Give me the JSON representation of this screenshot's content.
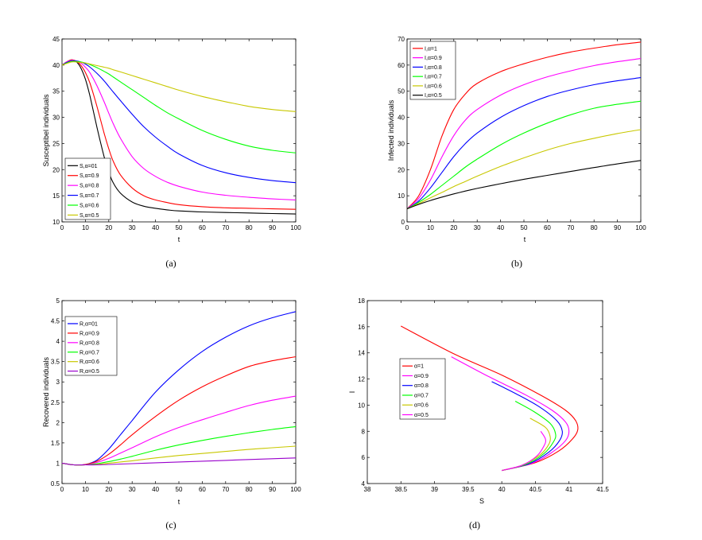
{
  "chart_data": [
    {
      "type": "line",
      "caption": "(a)",
      "xlabel": "t",
      "ylabel": "Susceptibel individuals",
      "xlim": [
        0,
        100
      ],
      "ylim": [
        10,
        45
      ],
      "xticks": [
        0,
        10,
        20,
        30,
        40,
        50,
        60,
        70,
        80,
        90,
        100
      ],
      "yticks": [
        10,
        15,
        20,
        25,
        30,
        35,
        40,
        45
      ],
      "legend_position": "bottom-left",
      "x": [
        0,
        2,
        4,
        6,
        8,
        10,
        12,
        15,
        18,
        20,
        22,
        25,
        30,
        35,
        40,
        45,
        50,
        60,
        70,
        80,
        90,
        100
      ],
      "series": [
        {
          "name": "S,α=01",
          "color": "#000000",
          "values": [
            40.0,
            40.6,
            41.0,
            40.7,
            39.5,
            37.3,
            34.0,
            28.0,
            22.5,
            19.5,
            17.4,
            15.5,
            13.8,
            13.0,
            12.6,
            12.3,
            12.1,
            11.9,
            11.8,
            11.7,
            11.6,
            11.5
          ]
        },
        {
          "name": "S,α=0.9",
          "color": "#ff0000",
          "values": [
            40.0,
            40.6,
            41.0,
            40.8,
            40.0,
            38.6,
            36.5,
            32.0,
            27.0,
            24.0,
            21.5,
            19.0,
            16.5,
            15.0,
            14.2,
            13.7,
            13.3,
            12.9,
            12.7,
            12.6,
            12.5,
            12.4
          ]
        },
        {
          "name": "S,α=0.8",
          "color": "#ff00ff",
          "values": [
            40.0,
            40.6,
            40.9,
            40.8,
            40.4,
            39.6,
            38.5,
            36.0,
            33.0,
            30.8,
            28.7,
            26.0,
            22.5,
            20.2,
            18.7,
            17.6,
            16.8,
            15.7,
            15.1,
            14.7,
            14.4,
            14.2
          ]
        },
        {
          "name": "S,α=0.7",
          "color": "#0000ff",
          "values": [
            40.0,
            40.5,
            40.8,
            40.8,
            40.6,
            40.2,
            39.6,
            38.4,
            37.0,
            35.9,
            34.8,
            33.2,
            30.6,
            28.2,
            26.2,
            24.5,
            23.0,
            20.8,
            19.4,
            18.5,
            17.9,
            17.5
          ]
        },
        {
          "name": "S,α=0.6",
          "color": "#00ff00",
          "values": [
            40.0,
            40.4,
            40.7,
            40.7,
            40.6,
            40.4,
            40.1,
            39.5,
            38.8,
            38.3,
            37.7,
            36.8,
            35.3,
            33.8,
            32.3,
            30.9,
            29.7,
            27.5,
            25.8,
            24.5,
            23.7,
            23.2
          ]
        },
        {
          "name": "S,α=0.5",
          "color": "#c8c800",
          "values": [
            40.0,
            40.3,
            40.6,
            40.6,
            40.5,
            40.4,
            40.2,
            39.9,
            39.6,
            39.4,
            39.1,
            38.7,
            38.0,
            37.3,
            36.6,
            35.9,
            35.2,
            34.0,
            33.0,
            32.1,
            31.5,
            31.1
          ]
        }
      ]
    },
    {
      "type": "line",
      "caption": "(b)",
      "xlabel": "t",
      "ylabel": "Infected individuals",
      "xlim": [
        0,
        100
      ],
      "ylim": [
        0,
        70
      ],
      "xticks": [
        0,
        10,
        20,
        30,
        40,
        50,
        60,
        70,
        80,
        90,
        100
      ],
      "yticks": [
        0,
        10,
        20,
        30,
        40,
        50,
        60,
        70
      ],
      "legend_position": "top-left",
      "x": [
        0,
        5,
        10,
        15,
        20,
        25,
        30,
        40,
        50,
        60,
        70,
        80,
        90,
        100
      ],
      "series": [
        {
          "name": "I,α=1",
          "color": "#ff0000",
          "values": [
            5,
            10,
            20,
            33,
            43,
            49,
            53,
            57.5,
            60.5,
            63,
            65,
            66.5,
            67.8,
            68.8
          ]
        },
        {
          "name": "I,α=0.9",
          "color": "#ff00ff",
          "values": [
            5,
            9,
            16,
            25,
            33,
            39,
            43,
            48.5,
            52.5,
            55.5,
            57.8,
            59.8,
            61.3,
            62.5
          ]
        },
        {
          "name": "I,α=0.8",
          "color": "#0000ff",
          "values": [
            5,
            8,
            13,
            19,
            25,
            30,
            34,
            40,
            44.5,
            48,
            50.5,
            52.5,
            54,
            55.2
          ]
        },
        {
          "name": "I,α=0.7",
          "color": "#00ff00",
          "values": [
            5,
            7.5,
            10.5,
            14,
            17.5,
            21,
            24,
            29.5,
            34,
            37.8,
            41,
            43.5,
            45,
            46.2
          ]
        },
        {
          "name": "I,α=0.6",
          "color": "#c8c800",
          "values": [
            5,
            7,
            9.2,
            11.3,
            13.5,
            15.5,
            17.5,
            21.2,
            24.5,
            27.5,
            30,
            32,
            33.8,
            35.3
          ]
        },
        {
          "name": "I,α=0.5",
          "color": "#000000",
          "values": [
            5,
            6.7,
            8.2,
            9.5,
            10.7,
            11.8,
            12.8,
            14.6,
            16.3,
            17.8,
            19.3,
            20.8,
            22.2,
            23.5
          ]
        }
      ]
    },
    {
      "type": "line",
      "caption": "(c)",
      "xlabel": "t",
      "ylabel": "Recovered individuals",
      "xlim": [
        0,
        100
      ],
      "ylim": [
        0.5,
        5
      ],
      "xticks": [
        0,
        10,
        20,
        30,
        40,
        50,
        60,
        70,
        80,
        90,
        100
      ],
      "yticks": [
        0.5,
        1,
        1.5,
        2,
        2.5,
        3,
        3.5,
        4,
        4.5,
        5
      ],
      "legend_position": "top-left",
      "x": [
        0,
        5,
        10,
        15,
        20,
        25,
        30,
        40,
        50,
        60,
        70,
        80,
        90,
        100
      ],
      "series": [
        {
          "name": "R,α=01",
          "color": "#0000ff",
          "values": [
            1.0,
            0.96,
            0.97,
            1.08,
            1.35,
            1.7,
            2.05,
            2.75,
            3.3,
            3.75,
            4.1,
            4.38,
            4.58,
            4.73
          ]
        },
        {
          "name": "R,α=0.9",
          "color": "#ff0000",
          "values": [
            1.0,
            0.96,
            0.97,
            1.05,
            1.22,
            1.45,
            1.7,
            2.15,
            2.55,
            2.88,
            3.15,
            3.38,
            3.52,
            3.62
          ]
        },
        {
          "name": "R,α=0.8",
          "color": "#ff00ff",
          "values": [
            1.0,
            0.96,
            0.96,
            1.02,
            1.12,
            1.25,
            1.38,
            1.65,
            1.88,
            2.07,
            2.25,
            2.42,
            2.55,
            2.65
          ]
        },
        {
          "name": "R,α=0.7",
          "color": "#00ff00",
          "values": [
            1.0,
            0.96,
            0.96,
            0.99,
            1.04,
            1.1,
            1.17,
            1.32,
            1.45,
            1.56,
            1.66,
            1.75,
            1.83,
            1.9
          ]
        },
        {
          "name": "R,α=0.6",
          "color": "#c8c800",
          "values": [
            1.0,
            0.96,
            0.96,
            0.97,
            1.0,
            1.03,
            1.06,
            1.13,
            1.19,
            1.24,
            1.29,
            1.34,
            1.38,
            1.42
          ]
        },
        {
          "name": "R,α=0.5",
          "color": "#9900cc",
          "values": [
            1.0,
            0.96,
            0.96,
            0.96,
            0.97,
            0.98,
            0.99,
            1.01,
            1.03,
            1.05,
            1.07,
            1.09,
            1.11,
            1.13
          ]
        }
      ]
    },
    {
      "type": "line",
      "caption": "(d)",
      "xlabel": "S",
      "ylabel": "I",
      "xlim": [
        38,
        41.5
      ],
      "ylim": [
        4,
        18
      ],
      "xticks": [
        38,
        38.5,
        39,
        39.5,
        40,
        40.5,
        41,
        41.5
      ],
      "yticks": [
        4,
        6,
        8,
        10,
        12,
        14,
        16,
        18
      ],
      "legend_position": "center-left",
      "series": [
        {
          "name": "α=1",
          "color": "#ff0000",
          "points": [
            [
              40.0,
              5.0
            ],
            [
              40.5,
              5.6
            ],
            [
              40.85,
              6.5
            ],
            [
              41.05,
              7.4
            ],
            [
              41.13,
              8.1
            ],
            [
              41.1,
              8.8
            ],
            [
              40.95,
              9.6
            ],
            [
              40.6,
              10.7
            ],
            [
              40.0,
              12.3
            ],
            [
              39.3,
              13.9
            ],
            [
              38.5,
              16.05
            ]
          ]
        },
        {
          "name": "α=0.9",
          "color": "#ff00ff",
          "points": [
            [
              40.0,
              5.0
            ],
            [
              40.45,
              5.55
            ],
            [
              40.75,
              6.4
            ],
            [
              40.95,
              7.3
            ],
            [
              41.0,
              8.0
            ],
            [
              40.95,
              8.7
            ],
            [
              40.75,
              9.6
            ],
            [
              40.35,
              10.8
            ],
            [
              39.8,
              12.2
            ],
            [
              39.25,
              13.7
            ]
          ]
        },
        {
          "name": "α=0.8",
          "color": "#0000ff",
          "points": [
            [
              40.0,
              5.0
            ],
            [
              40.4,
              5.5
            ],
            [
              40.7,
              6.4
            ],
            [
              40.86,
              7.3
            ],
            [
              40.9,
              8.0
            ],
            [
              40.82,
              8.8
            ],
            [
              40.55,
              9.9
            ],
            [
              40.2,
              10.9
            ],
            [
              39.85,
              11.8
            ]
          ]
        },
        {
          "name": "α=0.7",
          "color": "#00ff00",
          "points": [
            [
              40.0,
              5.0
            ],
            [
              40.35,
              5.45
            ],
            [
              40.63,
              6.3
            ],
            [
              40.77,
              7.2
            ],
            [
              40.8,
              7.8
            ],
            [
              40.72,
              8.6
            ],
            [
              40.48,
              9.5
            ],
            [
              40.2,
              10.3
            ]
          ]
        },
        {
          "name": "α=0.6",
          "color": "#c8c800",
          "points": [
            [
              40.0,
              5.0
            ],
            [
              40.3,
              5.4
            ],
            [
              40.57,
              6.2
            ],
            [
              40.7,
              7.0
            ],
            [
              40.72,
              7.6
            ],
            [
              40.65,
              8.3
            ],
            [
              40.42,
              9.0
            ]
          ]
        },
        {
          "name": "α=0.5",
          "color": "#ff00ff",
          "points": [
            [
              40.0,
              5.0
            ],
            [
              40.3,
              5.4
            ],
            [
              40.52,
              6.1
            ],
            [
              40.63,
              6.9
            ],
            [
              40.65,
              7.4
            ],
            [
              40.58,
              8.0
            ]
          ]
        }
      ]
    }
  ]
}
